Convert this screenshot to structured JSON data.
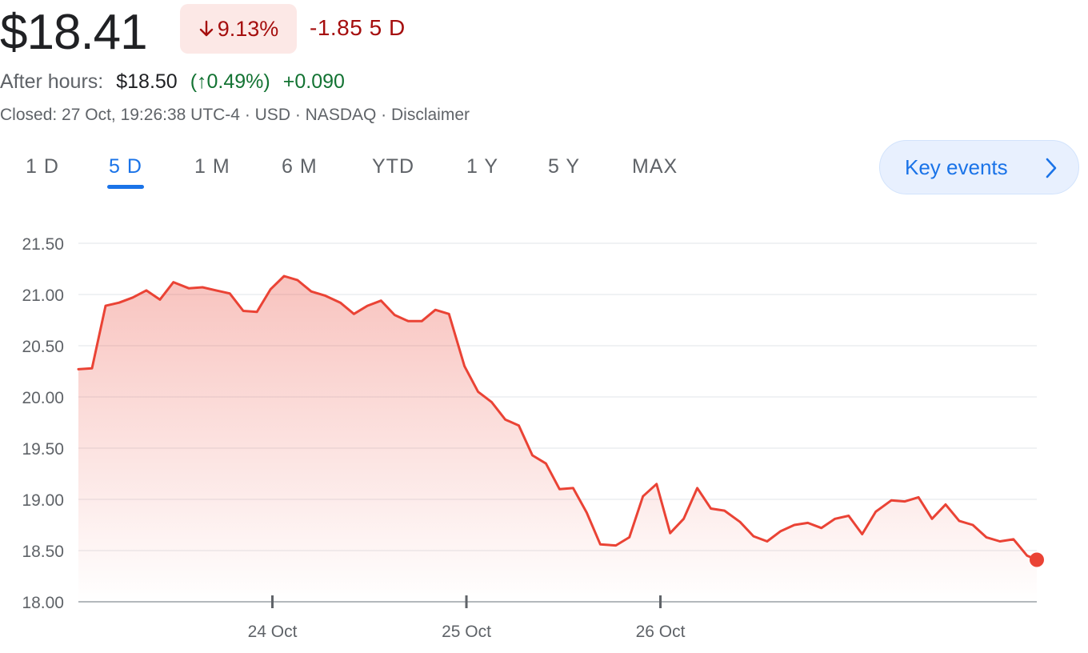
{
  "quote": {
    "price": "$18.41",
    "change_pct": "9.13%",
    "change_abs": "-1.85 5 D",
    "after_hours_label": "After hours:",
    "after_hours_price": "$18.50",
    "after_hours_pct": "(↑0.49%)",
    "after_hours_abs": "+0.090",
    "meta": "Closed: 27 Oct, 19:26:38 UTC-4 · USD · NASDAQ · Disclaimer"
  },
  "tabs": [
    "1 D",
    "5 D",
    "1 M",
    "6 M",
    "YTD",
    "1 Y",
    "5 Y",
    "MAX"
  ],
  "active_tab": "5 D",
  "key_events_label": "Key events",
  "colors": {
    "line": "#ea4335",
    "negative": "#a50e0e",
    "positive": "#137333",
    "accent": "#1a73e8"
  },
  "chart_data": {
    "type": "area",
    "x_ticks": [
      {
        "value": 1,
        "label": "24 Oct"
      },
      {
        "value": 2,
        "label": "25 Oct"
      },
      {
        "value": 3,
        "label": "26 Oct"
      }
    ],
    "y_ticks": [
      "21.50",
      "21.00",
      "20.50",
      "20.00",
      "19.50",
      "19.00",
      "18.50",
      "18.00"
    ],
    "ylim": [
      18.0,
      21.5
    ],
    "xlim": [
      0,
      4.94
    ],
    "grid": true,
    "x": [
      0.0,
      0.07,
      0.14,
      0.21,
      0.28,
      0.35,
      0.42,
      0.49,
      0.57,
      0.64,
      0.71,
      0.78,
      0.85,
      0.92,
      0.99,
      1.06,
      1.13,
      1.2,
      1.27,
      1.35,
      1.42,
      1.49,
      1.56,
      1.63,
      1.7,
      1.77,
      1.84,
      1.91,
      1.99,
      2.06,
      2.13,
      2.2,
      2.27,
      2.34,
      2.41,
      2.48,
      2.55,
      2.62,
      2.69,
      2.77,
      2.84,
      2.91,
      2.98,
      3.05,
      3.12,
      3.19,
      3.26,
      3.33,
      3.41,
      3.48,
      3.55,
      3.62,
      3.69,
      3.76,
      3.83,
      3.9,
      3.97,
      4.04,
      4.11,
      4.19,
      4.26,
      4.33,
      4.4,
      4.47,
      4.54,
      4.61,
      4.68,
      4.75,
      4.82,
      4.89,
      4.94
    ],
    "values": [
      20.27,
      20.28,
      20.89,
      20.92,
      20.97,
      21.04,
      20.95,
      21.12,
      21.06,
      21.07,
      21.04,
      21.01,
      20.84,
      20.83,
      21.05,
      21.18,
      21.14,
      21.03,
      20.99,
      20.92,
      20.81,
      20.89,
      20.94,
      20.8,
      20.74,
      20.74,
      20.85,
      20.81,
      20.3,
      20.05,
      19.95,
      19.78,
      19.72,
      19.43,
      19.35,
      19.1,
      19.11,
      18.87,
      18.56,
      18.55,
      18.63,
      19.03,
      19.15,
      18.67,
      18.81,
      19.11,
      18.91,
      18.89,
      18.78,
      18.64,
      18.59,
      18.69,
      18.75,
      18.77,
      18.72,
      18.81,
      18.84,
      18.66,
      18.88,
      18.99,
      18.98,
      19.02,
      18.81,
      18.95,
      18.79,
      18.75,
      18.63,
      18.59,
      18.61,
      18.45,
      18.41
    ]
  }
}
